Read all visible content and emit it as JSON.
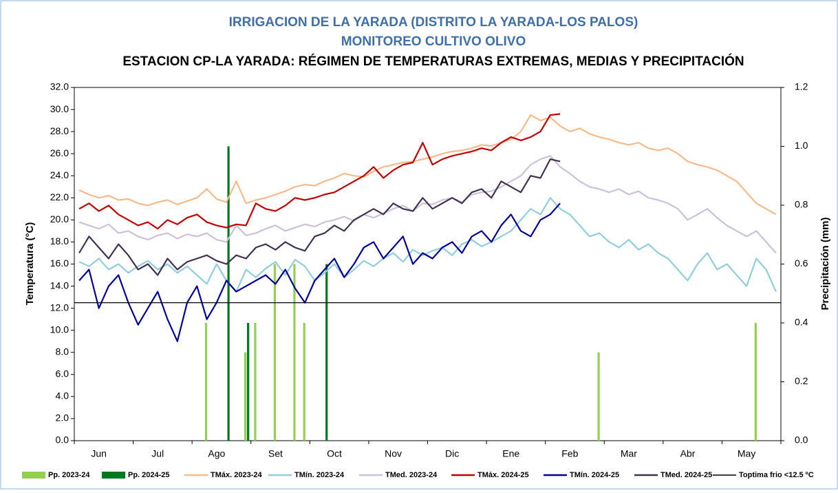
{
  "chart_data": {
    "type": "line",
    "title": "IRRIGACION DE LA YARADA (DISTRITO LA YARADA-LOS PALOS)",
    "subtitle": "MONITOREO CULTIVO OLIVO",
    "chart_title": "ESTACION CP-LA YARADA: RÉGIMEN DE TEMPERATURAS EXTREMAS, MEDIAS Y PRECIPITACIÓN",
    "y_label": "Temperatura (°C)",
    "y2_label": "Precipitación (mm)",
    "categories": [
      null,
      null,
      null,
      "Jun",
      null,
      null,
      null,
      null,
      null,
      "Jul",
      null,
      null,
      null,
      null,
      null,
      "Ago",
      null,
      null,
      null,
      null,
      null,
      "Set",
      null,
      null,
      null,
      null,
      null,
      "Oct",
      null,
      null,
      null,
      null,
      null,
      "Nov",
      null,
      null,
      null,
      null,
      null,
      "Dic",
      null,
      null,
      null,
      null,
      null,
      "Ene",
      null,
      null,
      null,
      null,
      null,
      "Feb",
      null,
      null,
      null,
      null,
      null,
      "Mar",
      null,
      null,
      null,
      null,
      null,
      "Abr",
      null,
      null,
      null,
      null,
      null,
      "May",
      null,
      null
    ],
    "ylim": [
      0,
      32
    ],
    "yticks": [
      {
        "value": 0,
        "label": "0.0"
      },
      {
        "value": 2,
        "label": "2.0"
      },
      {
        "value": 4,
        "label": "4.0"
      },
      {
        "value": 6,
        "label": "6.0"
      },
      {
        "value": 8,
        "label": "8.0"
      },
      {
        "value": 10,
        "label": "10.0"
      },
      {
        "value": 12,
        "label": "12.0"
      },
      {
        "value": 14,
        "label": "14.0"
      },
      {
        "value": 16,
        "label": "16.0"
      },
      {
        "value": 18,
        "label": "18.0"
      },
      {
        "value": 20,
        "label": "20.0"
      },
      {
        "value": 22,
        "label": "22.0"
      },
      {
        "value": 24,
        "label": "24.0"
      },
      {
        "value": 26,
        "label": "26.0"
      },
      {
        "value": 28,
        "label": "28.0"
      },
      {
        "value": 30,
        "label": "30.0"
      },
      {
        "value": 32,
        "label": "32.0"
      }
    ],
    "y2lim": [
      0,
      1.2
    ],
    "y2ticks": [
      {
        "value": 0,
        "label": "0.0"
      },
      {
        "value": 0.2,
        "label": "0.2"
      },
      {
        "value": 0.4,
        "label": "0.4"
      },
      {
        "value": 0.6,
        "label": "0.6"
      },
      {
        "value": 0.8,
        "label": "0.8"
      },
      {
        "value": 1,
        "label": "1.0"
      },
      {
        "value": 1.2,
        "label": "1.2"
      }
    ],
    "reference_line": {
      "name": "Toptima frio <12.5 ºC",
      "value": 12.5,
      "color": "#000000"
    },
    "series": [
      {
        "name": "Pp. 2023-24",
        "type": "bar",
        "axis": "y2",
        "color": "#92d050",
        "values": [
          null,
          null,
          null,
          null,
          null,
          null,
          null,
          null,
          null,
          null,
          null,
          null,
          null,
          0.4,
          null,
          null,
          null,
          0.3,
          0.4,
          null,
          0.6,
          null,
          0.6,
          0.4,
          null,
          null,
          null,
          null,
          null,
          null,
          null,
          null,
          null,
          null,
          null,
          null,
          null,
          null,
          null,
          null,
          null,
          null,
          null,
          null,
          null,
          null,
          null,
          null,
          null,
          null,
          null,
          null,
          null,
          0.3,
          null,
          null,
          null,
          null,
          null,
          null,
          null,
          null,
          null,
          null,
          null,
          null,
          null,
          null,
          null,
          0.4,
          null,
          null
        ]
      },
      {
        "name": "Pp. 2024-25",
        "type": "bar",
        "axis": "y2",
        "color": "#00781e",
        "values": [
          null,
          null,
          null,
          null,
          null,
          null,
          null,
          null,
          null,
          null,
          null,
          null,
          null,
          null,
          null,
          1.0,
          null,
          0.4,
          null,
          null,
          null,
          null,
          null,
          null,
          null,
          0.6,
          null,
          null,
          null,
          null,
          null,
          null,
          null,
          null,
          null,
          null,
          null,
          null,
          null,
          null,
          null,
          null,
          null,
          null,
          null,
          null,
          null,
          null,
          null,
          null,
          null,
          null,
          null,
          null,
          null,
          null,
          null,
          null,
          null,
          null,
          null,
          null,
          null,
          null,
          null,
          null,
          null,
          null,
          null,
          null,
          null,
          null
        ]
      },
      {
        "name": "TMáx. 2023-24",
        "type": "line",
        "color": "#f8b98a",
        "values": [
          22.7,
          22.3,
          22.0,
          22.2,
          21.8,
          21.9,
          21.5,
          21.3,
          21.6,
          21.8,
          21.4,
          21.7,
          22.0,
          22.8,
          21.9,
          21.6,
          23.5,
          21.5,
          21.8,
          22.0,
          22.3,
          22.6,
          23.0,
          23.2,
          23.1,
          23.5,
          23.8,
          24.2,
          24.0,
          23.9,
          24.4,
          24.8,
          25.0,
          25.2,
          25.3,
          25.5,
          25.7,
          26.0,
          26.2,
          26.3,
          26.5,
          26.8,
          26.7,
          27.0,
          27.3,
          28.0,
          29.5,
          29.0,
          29.3,
          28.5,
          28.0,
          28.3,
          27.8,
          27.5,
          27.3,
          27.0,
          26.8,
          27.0,
          26.5,
          26.3,
          26.5,
          26.0,
          25.3,
          25.0,
          24.8,
          24.5,
          24.0,
          23.5,
          22.5,
          21.5,
          21.0,
          20.5
        ]
      },
      {
        "name": "TMín. 2023-24",
        "type": "line",
        "color": "#92cddc",
        "values": [
          16.2,
          15.8,
          16.5,
          15.5,
          16.0,
          15.2,
          15.8,
          16.3,
          15.5,
          16.0,
          15.2,
          15.8,
          15.0,
          14.2,
          16.0,
          14.5,
          13.5,
          15.5,
          14.8,
          15.6,
          16.2,
          15.0,
          16.4,
          15.8,
          14.5,
          15.2,
          16.0,
          14.8,
          15.5,
          16.3,
          15.8,
          16.5,
          17.0,
          16.2,
          17.3,
          16.8,
          17.2,
          17.5,
          16.8,
          17.8,
          18.2,
          17.6,
          18.0,
          18.5,
          19.0,
          20.0,
          21.0,
          20.5,
          22.0,
          21.0,
          20.5,
          19.5,
          18.5,
          18.8,
          18.0,
          17.5,
          18.2,
          17.3,
          17.8,
          17.0,
          16.5,
          15.5,
          14.5,
          16.0,
          17.0,
          15.5,
          16.0,
          15.0,
          14.0,
          16.5,
          15.5,
          13.5
        ]
      },
      {
        "name": "TMed. 2023-24",
        "type": "line",
        "color": "#ccc0da",
        "values": [
          19.8,
          19.5,
          19.2,
          19.6,
          18.8,
          19.0,
          18.5,
          18.2,
          18.6,
          18.8,
          18.3,
          18.7,
          18.5,
          18.8,
          18.2,
          18.0,
          19.5,
          18.6,
          18.8,
          19.2,
          19.5,
          19.0,
          19.3,
          19.6,
          19.4,
          19.8,
          20.0,
          20.3,
          19.9,
          20.5,
          20.2,
          20.6,
          21.0,
          21.3,
          20.8,
          21.5,
          21.4,
          21.8,
          22.0,
          21.6,
          22.3,
          22.5,
          22.6,
          23.0,
          23.5,
          24.0,
          25.0,
          25.5,
          25.8,
          24.8,
          24.2,
          23.5,
          23.0,
          22.8,
          22.5,
          22.8,
          22.3,
          22.6,
          22.0,
          21.8,
          21.5,
          21.0,
          20.0,
          20.5,
          21.0,
          20.2,
          19.5,
          19.0,
          18.5,
          19.0,
          18.0,
          17.0
        ]
      },
      {
        "name": "TMáx. 2024-25",
        "type": "line",
        "color": "#c00000",
        "values": [
          21.0,
          21.5,
          20.8,
          21.3,
          20.5,
          20.0,
          19.5,
          19.8,
          19.2,
          20.0,
          19.6,
          20.2,
          20.5,
          19.8,
          19.5,
          19.3,
          19.6,
          19.5,
          21.5,
          21.0,
          20.8,
          21.3,
          22.0,
          21.8,
          22.0,
          22.3,
          22.5,
          23.0,
          23.5,
          24.0,
          24.8,
          23.8,
          24.5,
          25.0,
          25.2,
          27.0,
          25.0,
          25.5,
          25.8,
          26.0,
          26.2,
          26.5,
          26.3,
          27.0,
          27.5,
          27.2,
          27.5,
          28.0,
          29.5,
          29.6,
          null,
          null,
          null,
          null,
          null,
          null,
          null,
          null,
          null,
          null,
          null,
          null,
          null,
          null,
          null,
          null,
          null,
          null,
          null,
          null,
          null,
          null
        ]
      },
      {
        "name": "TMín. 2024-25",
        "type": "line",
        "color": "#000099",
        "values": [
          14.5,
          15.5,
          12.0,
          14.0,
          15.0,
          12.5,
          10.5,
          12.0,
          13.5,
          11.0,
          9.0,
          12.5,
          14.0,
          11.0,
          12.5,
          14.5,
          13.5,
          14.0,
          14.5,
          15.0,
          14.2,
          15.5,
          13.8,
          12.5,
          14.5,
          15.5,
          16.5,
          14.8,
          16.0,
          17.5,
          18.0,
          16.5,
          17.5,
          18.5,
          16.0,
          17.0,
          16.5,
          17.5,
          18.0,
          17.0,
          18.5,
          19.0,
          18.0,
          19.5,
          20.5,
          19.0,
          18.5,
          20.0,
          20.5,
          21.5,
          null,
          null,
          null,
          null,
          null,
          null,
          null,
          null,
          null,
          null,
          null,
          null,
          null,
          null,
          null,
          null,
          null,
          null,
          null,
          null,
          null,
          null
        ]
      },
      {
        "name": "TMed. 2024-25",
        "type": "line",
        "color": "#403151",
        "values": [
          17.0,
          18.5,
          17.5,
          16.5,
          17.8,
          16.8,
          15.5,
          16.0,
          15.0,
          16.5,
          15.5,
          16.2,
          16.5,
          16.8,
          16.3,
          16.0,
          16.8,
          16.5,
          17.5,
          17.8,
          17.3,
          18.0,
          17.5,
          17.2,
          18.5,
          18.8,
          19.5,
          19.0,
          20.0,
          20.5,
          21.0,
          20.5,
          21.5,
          21.0,
          20.8,
          22.0,
          21.0,
          21.5,
          22.0,
          21.5,
          22.5,
          22.8,
          22.0,
          23.5,
          23.0,
          22.5,
          24.0,
          23.8,
          25.5,
          25.3,
          null,
          null,
          null,
          null,
          null,
          null,
          null,
          null,
          null,
          null,
          null,
          null,
          null,
          null,
          null,
          null,
          null,
          null,
          null,
          null,
          null,
          null
        ]
      }
    ]
  }
}
